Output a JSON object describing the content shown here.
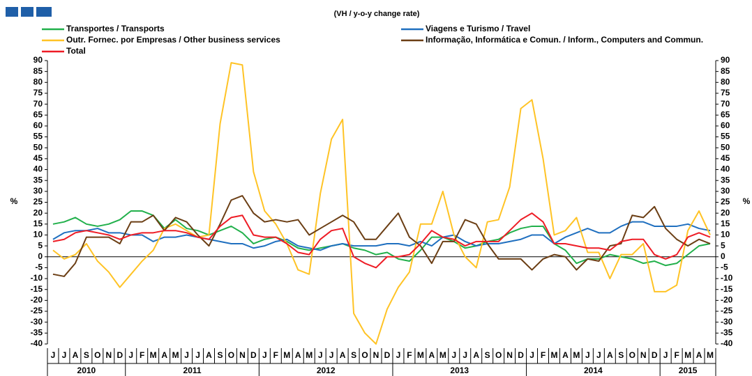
{
  "chart_data": {
    "type": "line",
    "subtitle": "(VH / y-o-y change rate)",
    "y_label": "%",
    "categories": [
      "J",
      "J",
      "A",
      "S",
      "O",
      "N",
      "D",
      "J",
      "F",
      "M",
      "A",
      "M",
      "J",
      "J",
      "A",
      "S",
      "O",
      "N",
      "D",
      "J",
      "F",
      "M",
      "A",
      "M",
      "J",
      "J",
      "A",
      "S",
      "O",
      "N",
      "D",
      "J",
      "F",
      "M",
      "A",
      "M",
      "J",
      "J",
      "A",
      "S",
      "O",
      "N",
      "D",
      "J",
      "F",
      "M",
      "A",
      "M",
      "J",
      "J",
      "A",
      "S",
      "O",
      "N",
      "D",
      "J",
      "F",
      "M",
      "A",
      "M"
    ],
    "years": [
      "2010",
      "2011",
      "2012",
      "2013",
      "2014",
      "2015"
    ],
    "ylim": [
      -40,
      90
    ],
    "yticks": [
      -40,
      -35,
      -30,
      -25,
      -20,
      -15,
      -10,
      -5,
      0,
      5,
      10,
      15,
      20,
      25,
      30,
      35,
      40,
      45,
      50,
      55,
      60,
      65,
      70,
      75,
      80,
      85,
      90
    ],
    "series": [
      {
        "name": "Transportes / Transports",
        "color": "#21b04b",
        "values": [
          15,
          16,
          18,
          15,
          14,
          15,
          17,
          21,
          21,
          19,
          13,
          17,
          13,
          12,
          10,
          12,
          14,
          11,
          6,
          8,
          9,
          7,
          4,
          3,
          4,
          5,
          6,
          4,
          3,
          1,
          2,
          -1,
          -2,
          3,
          9,
          9,
          7,
          4,
          5,
          7,
          8,
          11,
          13,
          14,
          14,
          6,
          3,
          -3,
          -1,
          -1,
          1,
          0,
          -1,
          -3,
          -2,
          -4,
          -3,
          1,
          5,
          6
        ]
      },
      {
        "name": "Viagens e Turismo / Travel",
        "color": "#1f6fbf",
        "values": [
          8,
          11,
          12,
          12,
          13,
          11,
          11,
          10,
          10,
          7,
          9,
          9,
          10,
          9,
          8,
          7,
          6,
          6,
          4,
          5,
          7,
          8,
          5,
          4,
          3,
          5,
          6,
          5,
          5,
          5,
          6,
          6,
          5,
          7,
          5,
          9,
          10,
          7,
          5,
          6,
          6,
          7,
          8,
          10,
          10,
          6,
          9,
          11,
          13,
          11,
          11,
          14,
          16,
          16,
          14,
          14,
          14,
          15,
          13,
          12
        ]
      },
      {
        "name": "Outr. Fornec. por Empresas / Other business services",
        "color": "#ffc325",
        "values": [
          3,
          -1,
          1,
          6,
          -2,
          -7,
          -14,
          -8,
          -2,
          3,
          13,
          15,
          12,
          9,
          10,
          61,
          89,
          88,
          39,
          21,
          15,
          6,
          -6,
          -8,
          29,
          54,
          63,
          -26,
          -35,
          -40,
          -24,
          -14,
          -7,
          15,
          15,
          30,
          10,
          0,
          -5,
          16,
          17,
          32,
          68,
          72,
          45,
          10,
          12,
          18,
          2,
          2,
          -10,
          1,
          1,
          6,
          -16,
          -16,
          -13,
          12,
          21,
          10
        ]
      },
      {
        "name": "Informação, Informática e Comun. / Inform., Computers and Commun.",
        "color": "#6b3e14",
        "values": [
          -8,
          -9,
          -3,
          9,
          9,
          9,
          6,
          16,
          16,
          19,
          12,
          18,
          16,
          10,
          5,
          15,
          26,
          28,
          20,
          16,
          17,
          16,
          17,
          10,
          13,
          16,
          19,
          16,
          8,
          8,
          14,
          20,
          9,
          5,
          -3,
          7,
          7,
          17,
          15,
          6,
          -1,
          -1,
          -1,
          -6,
          -1,
          1,
          0,
          -6,
          -1,
          -2,
          5,
          6,
          19,
          18,
          23,
          13,
          8,
          5,
          8,
          6
        ]
      },
      {
        "name": "Total",
        "color": "#ee1c25",
        "values": [
          7,
          8,
          11,
          12,
          11,
          10,
          8,
          10,
          11,
          11,
          12,
          12,
          11,
          9,
          8,
          14,
          18,
          19,
          10,
          9,
          9,
          6,
          2,
          1,
          8,
          12,
          13,
          0,
          -3,
          -5,
          0,
          0,
          1,
          6,
          12,
          9,
          8,
          5,
          7,
          7,
          7,
          12,
          17,
          20,
          16,
          6,
          6,
          5,
          4,
          4,
          3,
          7,
          8,
          8,
          1,
          -1,
          1,
          9,
          11,
          9
        ]
      }
    ]
  }
}
